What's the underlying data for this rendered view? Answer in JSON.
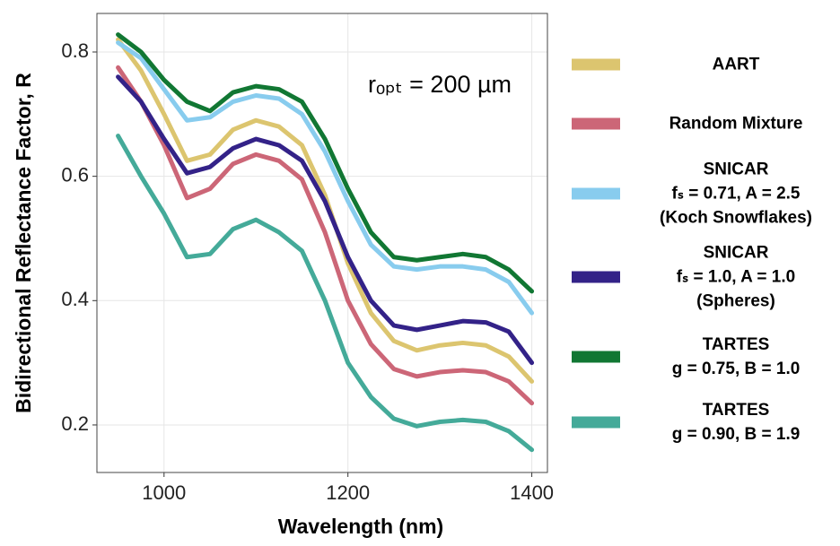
{
  "chart_data": {
    "type": "line",
    "x_label": "Wavelength (nm)",
    "y_label": "Bidirectional Reflectance Factor, R",
    "annotation": "rₒₚₜ = 200 µm",
    "x": [
      950,
      975,
      1000,
      1025,
      1050,
      1075,
      1100,
      1125,
      1150,
      1175,
      1200,
      1225,
      1250,
      1275,
      1300,
      1325,
      1350,
      1375,
      1400
    ],
    "series": [
      {
        "name": "AART",
        "color": "#dcc56f",
        "values": [
          0.82,
          0.77,
          0.7,
          0.625,
          0.635,
          0.675,
          0.69,
          0.68,
          0.65,
          0.57,
          0.46,
          0.38,
          0.335,
          0.32,
          0.328,
          0.332,
          0.328,
          0.31,
          0.27
        ]
      },
      {
        "name": "Random Mixture",
        "color": "#cc6677",
        "values": [
          0.775,
          0.72,
          0.65,
          0.565,
          0.58,
          0.62,
          0.635,
          0.625,
          0.595,
          0.51,
          0.4,
          0.33,
          0.29,
          0.278,
          0.285,
          0.288,
          0.285,
          0.27,
          0.235
        ]
      },
      {
        "name": "SNICAR\nfₛ = 0.71, A = 2.5\n(Koch Snowflakes)",
        "color": "#88ccee",
        "values": [
          0.815,
          0.79,
          0.74,
          0.69,
          0.695,
          0.72,
          0.73,
          0.725,
          0.7,
          0.64,
          0.56,
          0.49,
          0.455,
          0.45,
          0.455,
          0.455,
          0.45,
          0.43,
          0.38
        ]
      },
      {
        "name": "SNICAR\nfₛ = 1.0, A = 1.0\n(Spheres)",
        "color": "#332288",
        "values": [
          0.76,
          0.72,
          0.66,
          0.605,
          0.615,
          0.645,
          0.66,
          0.65,
          0.625,
          0.56,
          0.47,
          0.4,
          0.36,
          0.353,
          0.36,
          0.367,
          0.365,
          0.35,
          0.3
        ]
      },
      {
        "name": "TARTES\ng = 0.75, B = 1.0",
        "color": "#117733",
        "values": [
          0.828,
          0.8,
          0.755,
          0.72,
          0.705,
          0.735,
          0.745,
          0.74,
          0.72,
          0.66,
          0.58,
          0.51,
          0.47,
          0.465,
          0.47,
          0.475,
          0.47,
          0.45,
          0.415
        ]
      },
      {
        "name": "TARTES\ng = 0.90, B = 1.9",
        "color": "#44aa99",
        "values": [
          0.665,
          0.6,
          0.54,
          0.47,
          0.475,
          0.515,
          0.53,
          0.51,
          0.48,
          0.4,
          0.3,
          0.245,
          0.21,
          0.198,
          0.205,
          0.208,
          0.205,
          0.19,
          0.16
        ]
      }
    ],
    "xlim": [
      927,
      1417
    ],
    "xticks": [
      1000,
      1200,
      1400
    ],
    "ylim": [
      0.1235,
      0.862
    ],
    "yticks": [
      0.2,
      0.4,
      0.6,
      0.8
    ],
    "grid": true
  }
}
